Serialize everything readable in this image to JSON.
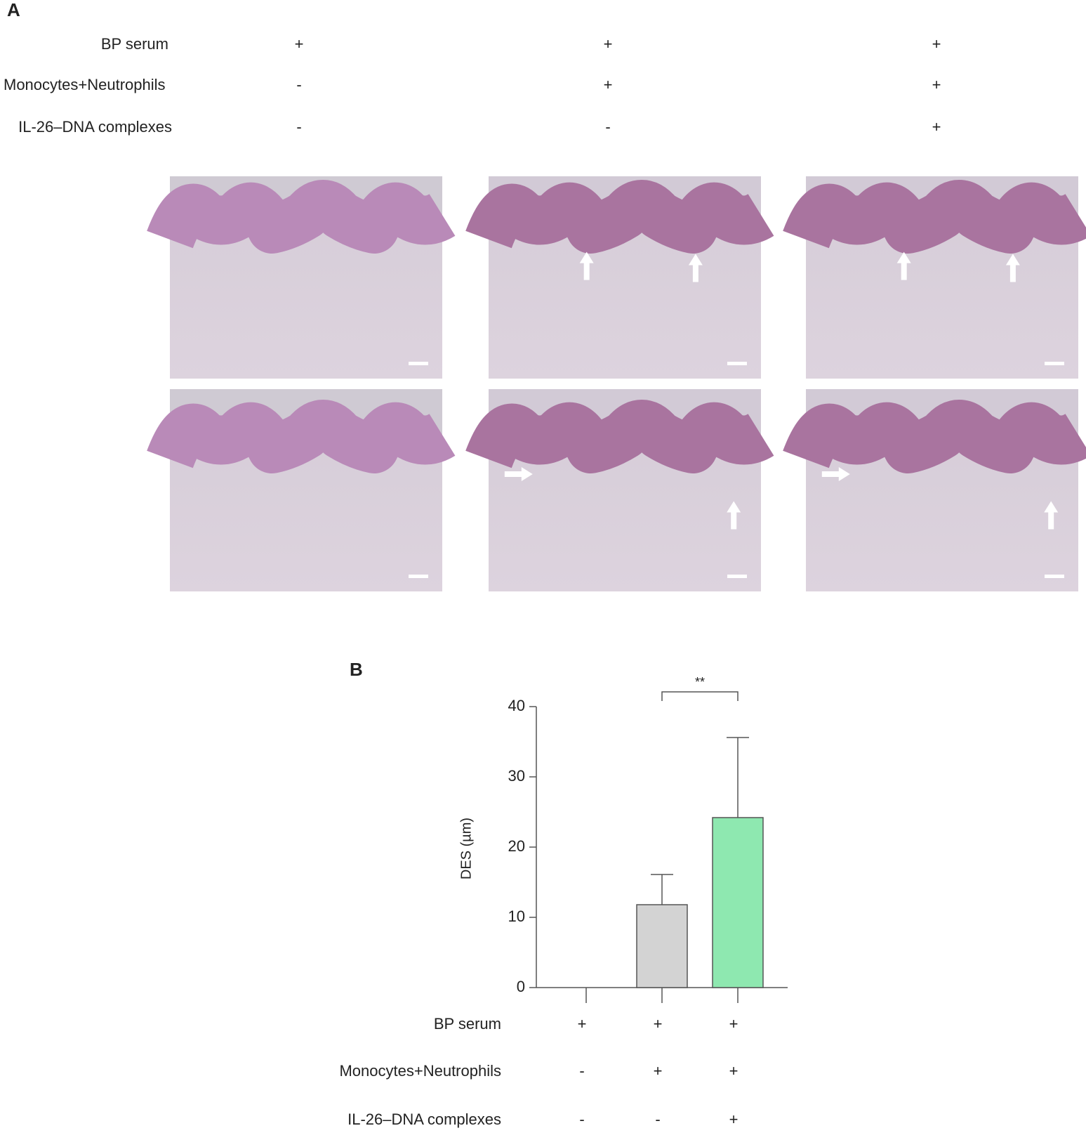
{
  "panel_a": {
    "label": "A",
    "conditions": [
      {
        "name": "BP serum",
        "signs": [
          "+",
          "+",
          "+"
        ]
      },
      {
        "name": "Monocytes+Neutrophils",
        "signs": [
          "-",
          "+",
          "+"
        ]
      },
      {
        "name": "IL-26–DNA  complexes",
        "signs": [
          "-",
          "-",
          "+"
        ]
      }
    ]
  },
  "chart_data": {
    "type": "bar",
    "panel_label": "B",
    "y_label": "DES (µm)",
    "categories": [
      null,
      null,
      null
    ],
    "values": [
      0,
      11.8,
      24.2
    ],
    "errors": [
      null,
      4.3,
      11.4
    ],
    "colors": [
      "#d3d3d3",
      "#d3d3d3",
      "#8ee8b0"
    ],
    "ylim": [
      0,
      40
    ],
    "yticks": [
      0,
      10,
      20,
      30,
      40
    ],
    "annotation": "**",
    "conditions": [
      {
        "name": "BP serum",
        "signs": [
          "+",
          "+",
          "+"
        ]
      },
      {
        "name": "Monocytes+Neutrophils",
        "signs": [
          "-",
          "+",
          "+"
        ]
      },
      {
        "name": "IL-26–DNA  complexes",
        "signs": [
          "-",
          "-",
          "+"
        ]
      }
    ]
  }
}
